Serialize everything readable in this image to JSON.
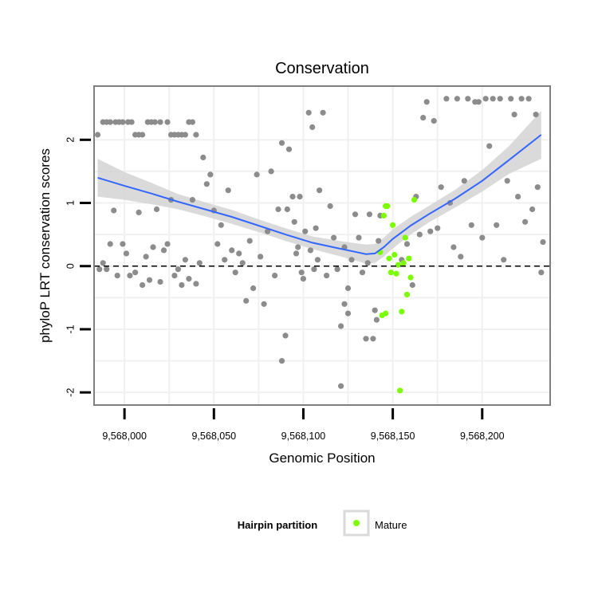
{
  "chart_data": {
    "type": "scatter",
    "title": "Conservation",
    "xlabel": "Genomic Position",
    "ylabel": "phyloP LRT conservation scores",
    "xlim": [
      9567983,
      9568238
    ],
    "ylim": [
      -2.2,
      2.85
    ],
    "xticks": [
      9568000,
      9568050,
      9568100,
      9568150,
      9568200
    ],
    "xtick_labels": [
      "9,568,000",
      "9,568,050",
      "9,568,100",
      "9,568,150",
      "9,568,200"
    ],
    "yticks": [
      -2,
      -1,
      0,
      1,
      2
    ],
    "ytick_labels": [
      "-2",
      "-1",
      "0",
      "1",
      "2"
    ],
    "grid": true,
    "reference_line": {
      "y": 0,
      "style": "dashed",
      "color": "#000000"
    },
    "legend": {
      "title": "Hairpin partition",
      "entries": [
        "Mature"
      ],
      "position": "bottom"
    },
    "colors": {
      "other": "#8c8c8c",
      "mature": "#7cfc00",
      "smooth": "#3366ff",
      "ribbon": "#d3d3d3",
      "panel_border": "#7f7f7f",
      "grid": "#f0f0f0"
    },
    "series": [
      {
        "name": "Other",
        "points": [
          [
            9567985,
            2.08
          ],
          [
            9567988,
            2.28
          ],
          [
            9567990,
            2.28
          ],
          [
            9567992,
            2.28
          ],
          [
            9567995,
            2.28
          ],
          [
            9567997,
            2.28
          ],
          [
            9567999,
            2.28
          ],
          [
            9568002,
            2.28
          ],
          [
            9568004,
            2.28
          ],
          [
            9568006,
            2.08
          ],
          [
            9568008,
            2.08
          ],
          [
            9568010,
            2.08
          ],
          [
            9568013,
            2.28
          ],
          [
            9568015,
            2.28
          ],
          [
            9568017,
            2.28
          ],
          [
            9568020,
            2.28
          ],
          [
            9568024,
            2.28
          ],
          [
            9568026,
            2.08
          ],
          [
            9568028,
            2.08
          ],
          [
            9568030,
            2.08
          ],
          [
            9568032,
            2.08
          ],
          [
            9568034,
            2.08
          ],
          [
            9568036,
            2.28
          ],
          [
            9568038,
            2.28
          ],
          [
            9568040,
            2.08
          ],
          [
            9567986,
            -0.05
          ],
          [
            9567988,
            0.05
          ],
          [
            9567990,
            -0.05
          ],
          [
            9567992,
            0.35
          ],
          [
            9567994,
            0.88
          ],
          [
            9567996,
            -0.15
          ],
          [
            9567999,
            0.35
          ],
          [
            9568001,
            0.2
          ],
          [
            9568003,
            -0.15
          ],
          [
            9568006,
            -0.1
          ],
          [
            9568008,
            0.85
          ],
          [
            9568010,
            -0.3
          ],
          [
            9568012,
            0.15
          ],
          [
            9568014,
            -0.22
          ],
          [
            9568016,
            0.3
          ],
          [
            9568018,
            0.9
          ],
          [
            9568020,
            -0.25
          ],
          [
            9568022,
            0.25
          ],
          [
            9568024,
            0.35
          ],
          [
            9568026,
            1.05
          ],
          [
            9568028,
            -0.15
          ],
          [
            9568030,
            -0.05
          ],
          [
            9568032,
            -0.3
          ],
          [
            9568034,
            0.1
          ],
          [
            9568036,
            -0.2
          ],
          [
            9568038,
            1.05
          ],
          [
            9568040,
            -0.28
          ],
          [
            9568042,
            0.05
          ],
          [
            9568044,
            1.72
          ],
          [
            9568046,
            1.3
          ],
          [
            9568048,
            1.45
          ],
          [
            9568050,
            0.88
          ],
          [
            9568052,
            0.35
          ],
          [
            9568054,
            0.65
          ],
          [
            9568056,
            0.1
          ],
          [
            9568058,
            1.2
          ],
          [
            9568060,
            0.25
          ],
          [
            9568062,
            -0.1
          ],
          [
            9568064,
            0.2
          ],
          [
            9568066,
            0.05
          ],
          [
            9568068,
            -0.55
          ],
          [
            9568070,
            0.4
          ],
          [
            9568072,
            -0.35
          ],
          [
            9568074,
            1.45
          ],
          [
            9568076,
            0.15
          ],
          [
            9568078,
            -0.6
          ],
          [
            9568080,
            0.55
          ],
          [
            9568082,
            1.5
          ],
          [
            9568084,
            -0.15
          ],
          [
            9568086,
            0.9
          ],
          [
            9568088,
            1.95
          ],
          [
            9568090,
            -1.1
          ],
          [
            9568092,
            1.85
          ],
          [
            9568094,
            1.1
          ],
          [
            9568096,
            0.2
          ],
          [
            9568098,
            1.1
          ],
          [
            9568100,
            -0.2
          ],
          [
            9568103,
            2.43
          ],
          [
            9568105,
            2.2
          ],
          [
            9568107,
            0.6
          ],
          [
            9568109,
            1.2
          ],
          [
            9568111,
            2.43
          ],
          [
            9568113,
            -0.15
          ],
          [
            9568115,
            0.95
          ],
          [
            9568117,
            0.45
          ],
          [
            9568119,
            -0.05
          ],
          [
            9568121,
            -0.95
          ],
          [
            9568123,
            0.3
          ],
          [
            9568125,
            -0.35
          ],
          [
            9568088,
            -1.5
          ],
          [
            9568091,
            0.9
          ],
          [
            9568095,
            0.7
          ],
          [
            9568097,
            0.3
          ],
          [
            9568099,
            -0.1
          ],
          [
            9568101,
            0.55
          ],
          [
            9568104,
            0.25
          ],
          [
            9568106,
            -0.05
          ],
          [
            9568108,
            0.1
          ],
          [
            9568121,
            -1.9
          ],
          [
            9568123,
            -0.6
          ],
          [
            9568125,
            -0.75
          ],
          [
            9568127,
            0.1
          ],
          [
            9568129,
            0.82
          ],
          [
            9568131,
            0.45
          ],
          [
            9568133,
            -0.1
          ],
          [
            9568135,
            -1.15
          ],
          [
            9568137,
            0.82
          ],
          [
            9568139,
            -1.15
          ],
          [
            9568141,
            -0.85
          ],
          [
            9568143,
            0.8
          ],
          [
            9568140,
            -0.7
          ],
          [
            9568142,
            0.4
          ],
          [
            9568136,
            0.05
          ],
          [
            9568155,
            0.1
          ],
          [
            9568158,
            0.35
          ],
          [
            9568161,
            -0.3
          ],
          [
            9568163,
            1.1
          ],
          [
            9568165,
            0.5
          ],
          [
            9568167,
            2.35
          ],
          [
            9568169,
            2.6
          ],
          [
            9568171,
            0.55
          ],
          [
            9568173,
            2.3
          ],
          [
            9568175,
            0.6
          ],
          [
            9568177,
            1.25
          ],
          [
            9568180,
            2.65
          ],
          [
            9568182,
            1.0
          ],
          [
            9568184,
            0.3
          ],
          [
            9568186,
            2.65
          ],
          [
            9568188,
            0.15
          ],
          [
            9568190,
            1.35
          ],
          [
            9568192,
            2.65
          ],
          [
            9568194,
            0.65
          ],
          [
            9568196,
            2.6
          ],
          [
            9568198,
            2.6
          ],
          [
            9568200,
            0.45
          ],
          [
            9568202,
            2.65
          ],
          [
            9568204,
            1.9
          ],
          [
            9568206,
            2.65
          ],
          [
            9568208,
            0.65
          ],
          [
            9568210,
            2.65
          ],
          [
            9568212,
            0.1
          ],
          [
            9568214,
            1.35
          ],
          [
            9568216,
            2.65
          ],
          [
            9568218,
            2.4
          ],
          [
            9568220,
            1.1
          ],
          [
            9568222,
            2.65
          ],
          [
            9568224,
            0.7
          ],
          [
            9568226,
            2.65
          ],
          [
            9568228,
            0.9
          ],
          [
            9568230,
            2.4
          ],
          [
            9568231,
            1.25
          ],
          [
            9568233,
            -0.1
          ],
          [
            9568234,
            0.38
          ]
        ]
      },
      {
        "name": "Mature",
        "points": [
          [
            9568143,
            0.22
          ],
          [
            9568145,
            0.8
          ],
          [
            9568146,
            0.95
          ],
          [
            9568147,
            0.95
          ],
          [
            9568148,
            0.12
          ],
          [
            9568149,
            -0.1
          ],
          [
            9568150,
            0.65
          ],
          [
            9568151,
            0.18
          ],
          [
            9568152,
            -0.12
          ],
          [
            9568153,
            0.02
          ],
          [
            9568154,
            -1.97
          ],
          [
            9568155,
            -0.72
          ],
          [
            9568156,
            0.05
          ],
          [
            9568157,
            0.45
          ],
          [
            9568158,
            -0.45
          ],
          [
            9568159,
            0.12
          ],
          [
            9568160,
            -0.18
          ],
          [
            9568162,
            1.05
          ],
          [
            9568144,
            -0.78
          ],
          [
            9568146,
            -0.75
          ]
        ]
      }
    ],
    "smooth": {
      "x": [
        9567985,
        9568000,
        9568015,
        9568030,
        9568045,
        9568060,
        9568075,
        9568090,
        9568105,
        9568120,
        9568130,
        9568135,
        9568140,
        9568145,
        9568150,
        9568160,
        9568170,
        9568185,
        9568200,
        9568215,
        9568233
      ],
      "y": [
        1.4,
        1.27,
        1.15,
        1.02,
        0.9,
        0.78,
        0.64,
        0.5,
        0.37,
        0.28,
        0.22,
        0.19,
        0.2,
        0.3,
        0.43,
        0.64,
        0.82,
        1.07,
        1.35,
        1.68,
        2.08
      ],
      "lower": [
        1.1,
        1.05,
        0.98,
        0.9,
        0.79,
        0.67,
        0.54,
        0.4,
        0.27,
        0.16,
        0.08,
        0.04,
        0.05,
        0.15,
        0.28,
        0.5,
        0.69,
        0.93,
        1.18,
        1.46,
        1.7
      ],
      "upper": [
        1.7,
        1.49,
        1.32,
        1.14,
        1.01,
        0.89,
        0.74,
        0.6,
        0.47,
        0.4,
        0.36,
        0.34,
        0.35,
        0.45,
        0.58,
        0.78,
        0.95,
        1.21,
        1.52,
        1.9,
        2.46
      ]
    }
  }
}
